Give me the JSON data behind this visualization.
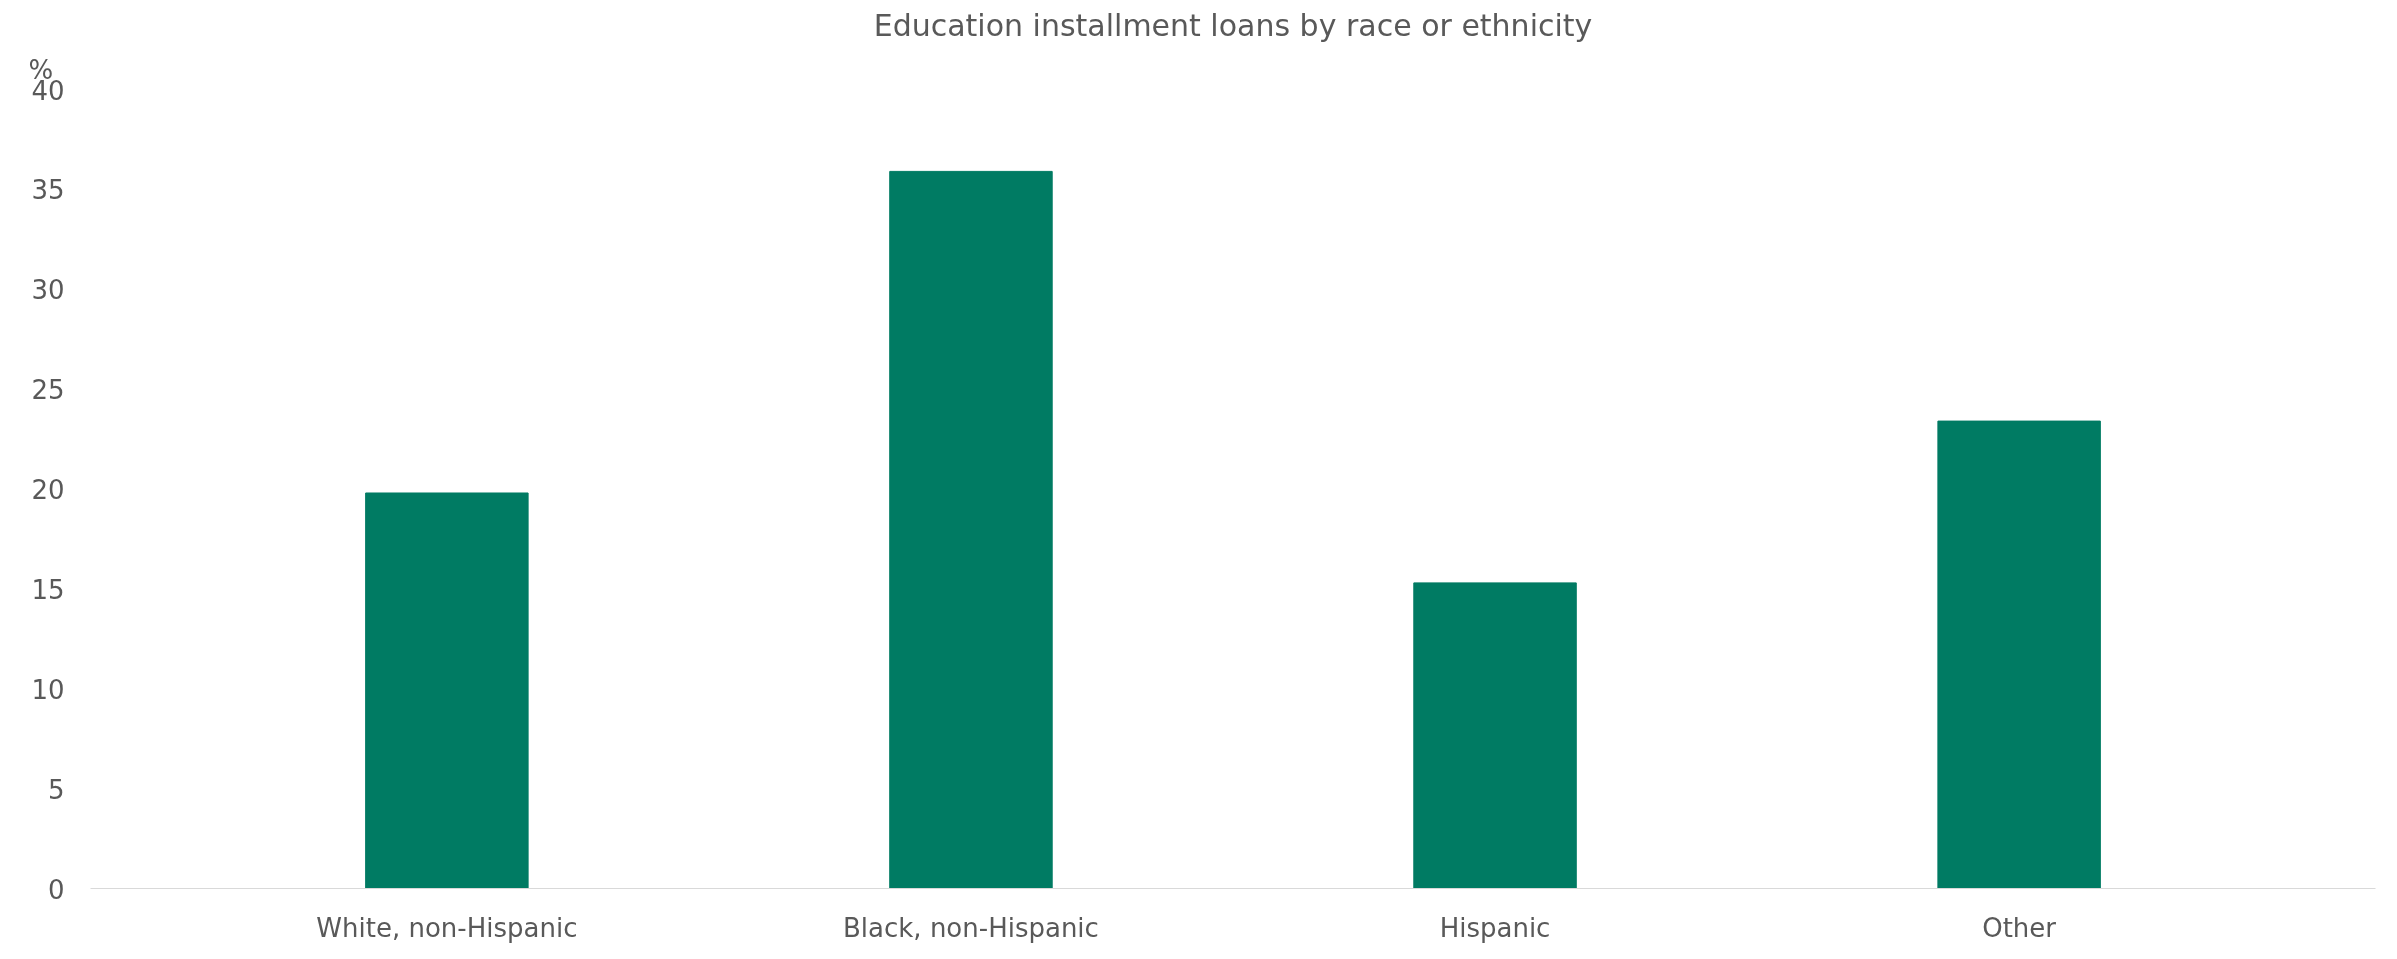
{
  "chart_data": {
    "type": "bar",
    "title": "Education installment loans by race or ethnicity",
    "ylabel": "%",
    "categories": [
      "White, non-Hispanic",
      "Black, non-Hispanic",
      "Hispanic",
      "Other"
    ],
    "values": [
      19.8,
      35.9,
      15.3,
      23.4
    ],
    "color": "#007b63",
    "ylim": [
      0,
      40
    ],
    "yticks": [
      0,
      5,
      10,
      15,
      20,
      25,
      30,
      35,
      40
    ],
    "grid": false
  }
}
